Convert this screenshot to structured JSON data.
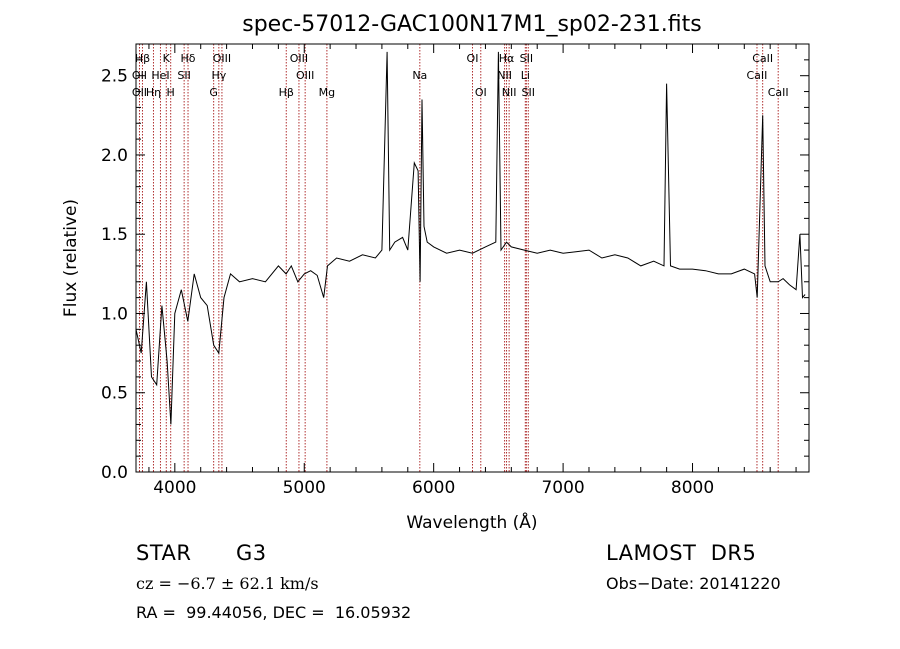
{
  "chart_data": {
    "type": "line",
    "title": "spec-57012-GAC100N17M1_sp02-231.fits",
    "xlabel": "Wavelength (Å)",
    "ylabel": "Flux (relative)",
    "xlim": [
      3700,
      8900
    ],
    "ylim": [
      0.0,
      2.7
    ],
    "xticks": [
      4000,
      5000,
      6000,
      7000,
      8000
    ],
    "yticks": [
      "0.0",
      "0.5",
      "1.0",
      "1.5",
      "2.0",
      "2.5"
    ],
    "grid": false,
    "series": [
      {
        "x": [
          3700,
          3740,
          3780,
          3820,
          3860,
          3900,
          3940,
          3970,
          4000,
          4050,
          4100,
          4150,
          4200,
          4250,
          4300,
          4340,
          4380,
          4430,
          4500,
          4600,
          4700,
          4800,
          4860,
          4900,
          4950,
          5000,
          5050,
          5100,
          5150,
          5180,
          5250,
          5350,
          5450,
          5550,
          5600,
          5640,
          5660,
          5700,
          5760,
          5800,
          5850,
          5880,
          5895,
          5910,
          5925,
          5950,
          6000,
          6100,
          6200,
          6300,
          6400,
          6480,
          6500,
          6520,
          6563,
          6600,
          6700,
          6800,
          6900,
          7000,
          7100,
          7200,
          7300,
          7400,
          7500,
          7600,
          7700,
          7780,
          7800,
          7830,
          7900,
          8000,
          8100,
          8200,
          8300,
          8400,
          8480,
          8500,
          8542,
          8560,
          8600,
          8662,
          8700,
          8750,
          8800,
          8830,
          8850,
          8870
        ],
        "y": [
          0.9,
          0.75,
          1.2,
          0.6,
          0.55,
          1.05,
          0.7,
          0.3,
          1.0,
          1.15,
          0.95,
          1.25,
          1.1,
          1.05,
          0.8,
          0.75,
          1.1,
          1.25,
          1.2,
          1.22,
          1.2,
          1.3,
          1.25,
          1.3,
          1.2,
          1.25,
          1.27,
          1.24,
          1.1,
          1.3,
          1.35,
          1.33,
          1.37,
          1.35,
          1.4,
          2.65,
          1.4,
          1.45,
          1.48,
          1.4,
          1.95,
          1.9,
          1.2,
          2.35,
          1.55,
          1.45,
          1.42,
          1.38,
          1.4,
          1.38,
          1.42,
          1.45,
          2.65,
          1.4,
          1.45,
          1.42,
          1.4,
          1.38,
          1.4,
          1.38,
          1.39,
          1.4,
          1.35,
          1.37,
          1.35,
          1.3,
          1.33,
          1.3,
          2.45,
          1.3,
          1.28,
          1.28,
          1.27,
          1.25,
          1.25,
          1.28,
          1.25,
          1.1,
          2.25,
          1.3,
          1.2,
          1.2,
          1.22,
          1.18,
          1.15,
          1.5,
          1.1,
          1.12
        ]
      }
    ],
    "lines": [
      {
        "label": "Hβ",
        "x": 3750,
        "row": 0
      },
      {
        "label": "K",
        "x": 3934,
        "row": 0
      },
      {
        "label": "Hδ",
        "x": 4102,
        "row": 0
      },
      {
        "label": "OIII",
        "x": 4364,
        "row": 0
      },
      {
        "label": "OIII",
        "x": 4959,
        "row": 0
      },
      {
        "label": "OI",
        "x": 6300,
        "row": 0
      },
      {
        "label": "Hα",
        "x": 6563,
        "row": 0
      },
      {
        "label": "SII",
        "x": 6716,
        "row": 0
      },
      {
        "label": "CaII",
        "x": 8542,
        "row": 0
      },
      {
        "label": "OII",
        "x": 3727,
        "row": 1
      },
      {
        "label": "HeI",
        "x": 3889,
        "row": 1
      },
      {
        "label": "SII",
        "x": 4072,
        "row": 1
      },
      {
        "label": "Hγ",
        "x": 4340,
        "row": 1
      },
      {
        "label": "OIII",
        "x": 5007,
        "row": 1
      },
      {
        "label": "Na",
        "x": 5893,
        "row": 1
      },
      {
        "label": "NII",
        "x": 6548,
        "row": 1
      },
      {
        "label": "Li",
        "x": 6708,
        "row": 1
      },
      {
        "label": "CaII",
        "x": 8498,
        "row": 1
      },
      {
        "label": "OII",
        "x": 3727,
        "row": 2
      },
      {
        "label": "Hη",
        "x": 3835,
        "row": 2
      },
      {
        "label": "H",
        "x": 3968,
        "row": 2
      },
      {
        "label": "G",
        "x": 4300,
        "row": 2
      },
      {
        "label": "Hβ",
        "x": 4861,
        "row": 2
      },
      {
        "label": "Mg",
        "x": 5175,
        "row": 2
      },
      {
        "label": "OI",
        "x": 6364,
        "row": 2
      },
      {
        "label": "NII",
        "x": 6583,
        "row": 2
      },
      {
        "label": "SII",
        "x": 6731,
        "row": 2
      },
      {
        "label": "CaII",
        "x": 8662,
        "row": 2
      }
    ],
    "line_marker_color": "#b03030",
    "spectrum_color": "#000000"
  },
  "info": {
    "object_class": "STAR",
    "subclass": "G3",
    "release": "LAMOST  DR5",
    "cz": "cz = −6.7 ± 62.1 km/s",
    "obs_date": "Obs−Date: 20141220",
    "coords": "RA =  99.44056, DEC =  16.05932"
  }
}
